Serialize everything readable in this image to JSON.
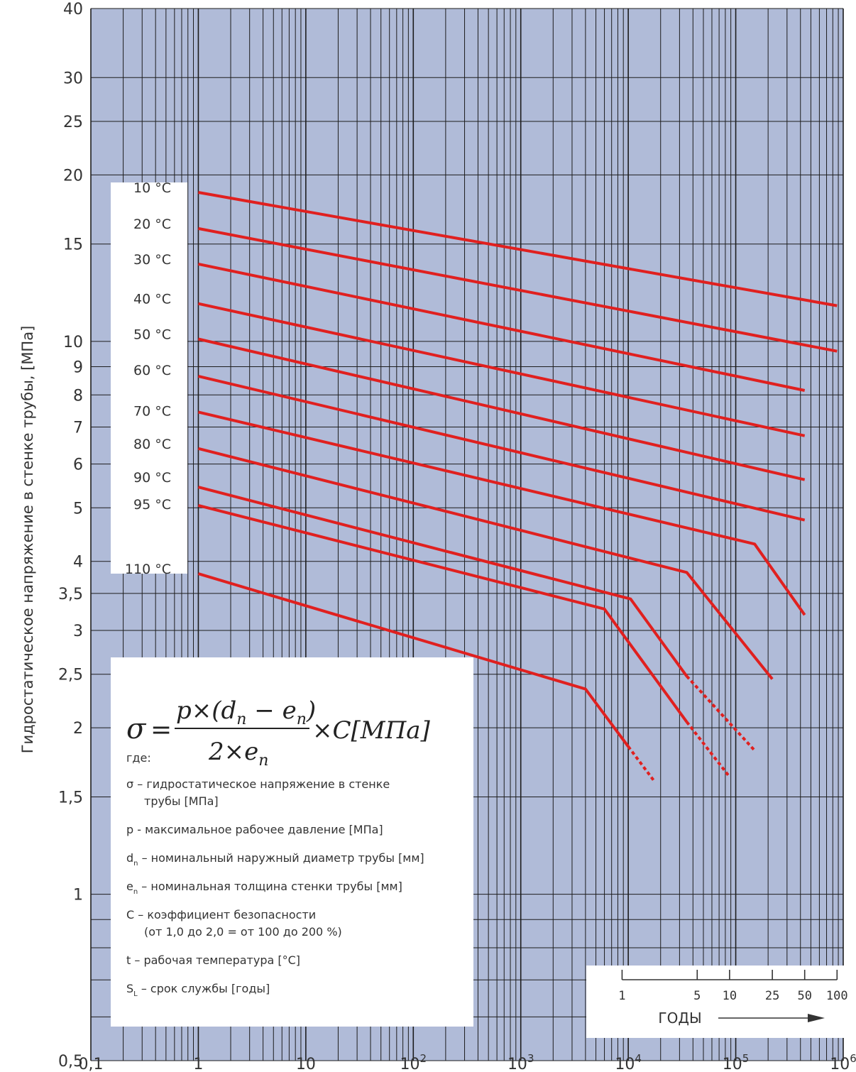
{
  "colors": {
    "background": "#b0bbd8",
    "grid": "#1d1d1d",
    "series": "#e0201f",
    "panel": "#ffffff",
    "text": "#333333"
  },
  "chart_data": {
    "type": "line",
    "title": "",
    "xlabel": "",
    "ylabel": "Гидростатическое напряжение в стенке трубы, [МПа]",
    "x_scale": "log",
    "y_scale": "log",
    "xlim": [
      0.1,
      1000000
    ],
    "ylim": [
      0.5,
      40
    ],
    "grid": true,
    "x_ticks": [
      {
        "value": 0.1,
        "label": "0,1"
      },
      {
        "value": 1,
        "label": "1"
      },
      {
        "value": 10,
        "label": "10"
      },
      {
        "value": 100,
        "base": "10",
        "exp": "2"
      },
      {
        "value": 1000,
        "base": "10",
        "exp": "3"
      },
      {
        "value": 10000,
        "base": "10",
        "exp": "4"
      },
      {
        "value": 100000,
        "base": "10",
        "exp": "5"
      },
      {
        "value": 1000000,
        "base": "10",
        "exp": "6"
      }
    ],
    "y_ticks": [
      {
        "value": 40,
        "label": "40"
      },
      {
        "value": 30,
        "label": "30"
      },
      {
        "value": 25,
        "label": "25"
      },
      {
        "value": 20,
        "label": "20"
      },
      {
        "value": 15,
        "label": "15"
      },
      {
        "value": 10,
        "label": "10"
      },
      {
        "value": 9,
        "label": "9"
      },
      {
        "value": 8,
        "label": "8"
      },
      {
        "value": 7,
        "label": "7"
      },
      {
        "value": 6,
        "label": "6"
      },
      {
        "value": 5,
        "label": "5"
      },
      {
        "value": 4,
        "label": "4"
      },
      {
        "value": 3.5,
        "label": "3,5"
      },
      {
        "value": 3,
        "label": "3"
      },
      {
        "value": 2.5,
        "label": "2,5"
      },
      {
        "value": 2,
        "label": "2"
      },
      {
        "value": 1.5,
        "label": "1,5"
      },
      {
        "value": 1,
        "label": "1"
      },
      {
        "value": 0.5,
        "label": "0,5"
      }
    ],
    "series": [
      {
        "name": "10 °C",
        "points": [
          [
            1,
            18.6
          ],
          [
            876000,
            11.6
          ]
        ]
      },
      {
        "name": "20 °C",
        "points": [
          [
            1,
            16.0
          ],
          [
            876000,
            9.6
          ]
        ]
      },
      {
        "name": "30 °C",
        "points": [
          [
            1,
            13.8
          ],
          [
            438000,
            8.15
          ]
        ]
      },
      {
        "name": "40 °C",
        "points": [
          [
            1,
            11.7
          ],
          [
            438000,
            6.75
          ]
        ]
      },
      {
        "name": "50 °C",
        "points": [
          [
            1,
            10.1
          ],
          [
            438000,
            5.62
          ]
        ]
      },
      {
        "name": "60 °C",
        "points": [
          [
            1,
            8.65
          ],
          [
            438000,
            4.75
          ]
        ]
      },
      {
        "name": "70 °C",
        "points": [
          [
            1,
            7.45
          ],
          [
            150000,
            4.3
          ],
          [
            438000,
            3.2
          ]
        ]
      },
      {
        "name": "80 °C",
        "points": [
          [
            1,
            6.4
          ],
          [
            35000,
            3.82
          ],
          [
            219000,
            2.45
          ]
        ]
      },
      {
        "name": "90 °C",
        "points": [
          [
            1,
            5.45
          ],
          [
            10500,
            3.42
          ],
          [
            35000,
            2.48
          ]
        ],
        "dashed_tail": [
          [
            35000,
            2.48
          ],
          [
            150000,
            1.82
          ]
        ]
      },
      {
        "name": "95 °C",
        "points": [
          [
            1,
            5.05
          ],
          [
            6000,
            3.28
          ],
          [
            35000,
            2.05
          ]
        ],
        "dashed_tail": [
          [
            35000,
            2.05
          ],
          [
            87600,
            1.63
          ]
        ]
      },
      {
        "name": "110 °C",
        "points": [
          [
            1,
            3.8
          ],
          [
            4000,
            2.35
          ],
          [
            10000,
            1.85
          ]
        ],
        "dashed_tail": [
          [
            10000,
            1.85
          ],
          [
            17520,
            1.6
          ]
        ]
      }
    ],
    "years_axis": {
      "title": "ГОДЫ",
      "ticks": [
        {
          "label": "1",
          "hours": 8760
        },
        {
          "label": "5",
          "hours": 43800
        },
        {
          "label": "10",
          "hours": 87600
        },
        {
          "label": "25",
          "hours": 219000
        },
        {
          "label": "50",
          "hours": 438000
        },
        {
          "label": "100",
          "hours": 876000
        }
      ]
    }
  },
  "formula": {
    "lhs": "σ",
    "eq": "=",
    "num_p": "p×(d",
    "num_sub1": "n",
    "num_minus": " − e",
    "num_sub2": "n",
    "num_close": ")",
    "den": "2×e",
    "den_sub": "n",
    "rhs": "×C[MПa]"
  },
  "legend": {
    "where": "где:",
    "items": [
      {
        "sym": "σ",
        "sub": "",
        "text": " – гидростатическое напряжение в стенке",
        "cont": "трубы [МПа]"
      },
      {
        "sym": "p",
        "sub": "",
        "text": " - максимальное рабочее давление [МПа]",
        "cont": ""
      },
      {
        "sym": "d",
        "sub": "n",
        "text": " – номинальный наружный диаметр трубы [мм]",
        "cont": ""
      },
      {
        "sym": "e",
        "sub": "n",
        "text": " – номинальная толщина стенки трубы [мм]",
        "cont": ""
      },
      {
        "sym": "C",
        "sub": "",
        "text": " – коэффициент безопасности",
        "cont": "(от 1,0 до 2,0 = от 100 до 200 %)"
      },
      {
        "sym": "t",
        "sub": "",
        "text": " – рабочая температура [°C]",
        "cont": ""
      },
      {
        "sym": "S",
        "sub": "L",
        "text": " – срок службы [годы]",
        "cont": ""
      }
    ]
  }
}
